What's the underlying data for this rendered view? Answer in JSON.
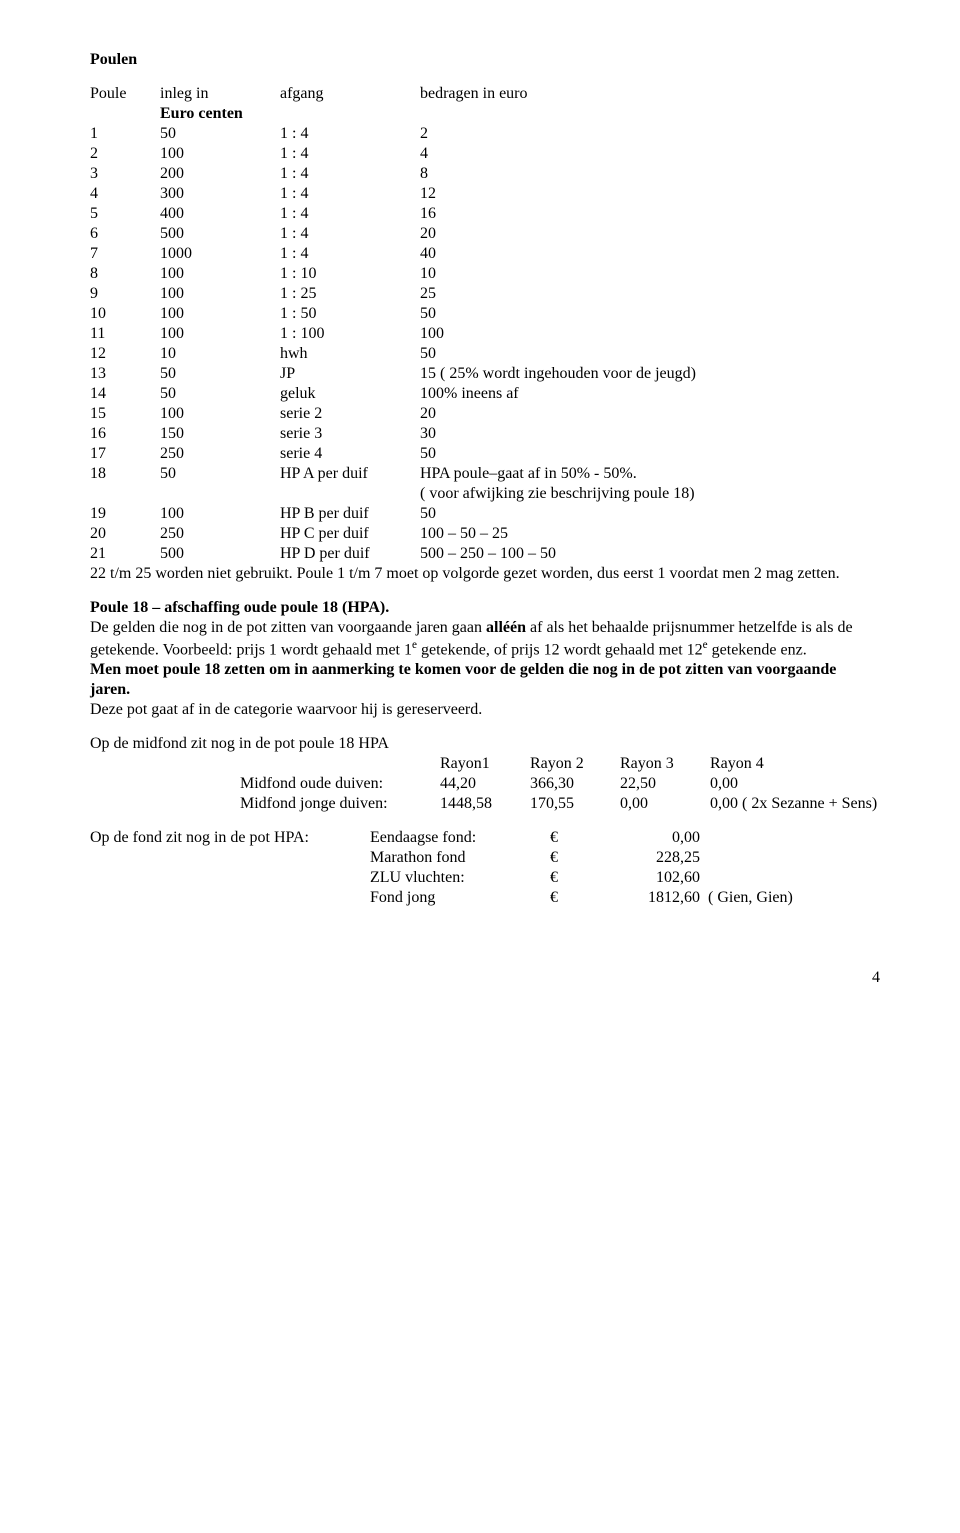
{
  "title": "Poulen",
  "header": {
    "poule": "Poule",
    "inleg": "inleg in",
    "euro_centen": "Euro centen",
    "afgang": "afgang",
    "bedragen": "bedragen in euro"
  },
  "rows": [
    {
      "n": "1",
      "inleg": "50",
      "afgang": "1 : 4",
      "bedrag": "2"
    },
    {
      "n": "2",
      "inleg": "100",
      "afgang": "1 : 4",
      "bedrag": "4"
    },
    {
      "n": "3",
      "inleg": "200",
      "afgang": "1 : 4",
      "bedrag": "8"
    },
    {
      "n": "4",
      "inleg": "300",
      "afgang": "1 : 4",
      "bedrag": "12"
    },
    {
      "n": "5",
      "inleg": "400",
      "afgang": "1 : 4",
      "bedrag": "16"
    },
    {
      "n": "6",
      "inleg": "500",
      "afgang": "1 : 4",
      "bedrag": "20"
    },
    {
      "n": "7",
      "inleg": "1000",
      "afgang": "1 : 4",
      "bedrag": "40"
    },
    {
      "n": "8",
      "inleg": "100",
      "afgang": "1 : 10",
      "bedrag": "10"
    },
    {
      "n": "9",
      "inleg": "100",
      "afgang": "1 : 25",
      "bedrag": "25"
    },
    {
      "n": "10",
      "inleg": "100",
      "afgang": "1 : 50",
      "bedrag": "50"
    },
    {
      "n": "11",
      "inleg": "100",
      "afgang": "1 : 100",
      "bedrag": "100"
    },
    {
      "n": "12",
      "inleg": "10",
      "afgang": "hwh",
      "bedrag": "50"
    },
    {
      "n": "13",
      "inleg": "50",
      "afgang": "JP",
      "bedrag": "15 ( 25% wordt ingehouden voor de jeugd)"
    },
    {
      "n": "14",
      "inleg": "50",
      "afgang": "geluk",
      "bedrag": "100%  ineens af"
    },
    {
      "n": "15",
      "inleg": "100",
      "afgang": "serie 2",
      "bedrag": "20"
    },
    {
      "n": "16",
      "inleg": "150",
      "afgang": "serie 3",
      "bedrag": "30"
    },
    {
      "n": "17",
      "inleg": "250",
      "afgang": "serie 4",
      "bedrag": "50"
    },
    {
      "n": "18",
      "inleg": "50",
      "afgang": "HP A  per duif",
      "bedrag": "HPA poule–gaat af in 50% - 50%."
    }
  ],
  "row18_note": "( voor afwijking zie beschrijving poule 18)",
  "rows2": [
    {
      "n": "19",
      "inleg": "100",
      "afgang": "HP B  per duif",
      "bedrag": "50"
    },
    {
      "n": "20",
      "inleg": "250",
      "afgang": "HP C  per duif",
      "bedrag": "100 – 50 – 25"
    },
    {
      "n": "21",
      "inleg": "500",
      "afgang": "HP D  per duif",
      "bedrag": "500 – 250 – 100 – 50"
    }
  ],
  "para1": "22 t/m 25 worden niet gebruikt. Poule 1 t/m 7 moet op volgorde gezet worden, dus eerst 1 voordat men 2 mag zetten.",
  "poule18_title": "Poule 18 – afschaffing oude poule 18 (HPA).",
  "p18_a": "De gelden die nog in de pot zitten van voorgaande jaren gaan ",
  "p18_alleen": "alléén",
  "p18_b": " af als het behaalde prijsnummer hetzelfde is als de getekende. Voorbeeld: prijs 1 wordt gehaald met 1",
  "p18_sup1": "e",
  "p18_c": " getekende,  of prijs 12 wordt gehaald met 12",
  "p18_sup2": "e",
  "p18_d": " getekende enz.",
  "p18_bold": "Men moet poule 18 zetten om in aanmerking te komen voor de gelden die nog in de pot zitten van voorgaande jaren.",
  "p18_e": "Deze pot gaat af in de categorie waarvoor hij is gereserveerd.",
  "midfond_intro": "Op de midfond zit nog in de pot poule 18 HPA",
  "rayon_header": {
    "r1": "Rayon1",
    "r2": "Rayon 2",
    "r3": "Rayon 3",
    "r4": "Rayon 4"
  },
  "midfond": [
    {
      "label": "Midfond oude duiven:",
      "r1": "44,20",
      "r2": "366,30",
      "r3": "22,50",
      "r4": "0,00"
    },
    {
      "label": "Midfond jonge duiven:",
      "r1": "1448,58",
      "r2": "170,55",
      "r3": "0,00",
      "r4": "0,00 ( 2x Sezanne + Sens)"
    }
  ],
  "fond_intro": "Op de fond zit nog in de pot HPA:",
  "fond": [
    {
      "name": "Eendaagse fond:",
      "eur": "€",
      "val": "0,00",
      "tail": ""
    },
    {
      "name": "Marathon  fond",
      "eur": "€",
      "val": "228,25",
      "tail": ""
    },
    {
      "name": "ZLU vluchten:",
      "eur": "€",
      "val": "102,60",
      "tail": ""
    },
    {
      "name": "Fond jong",
      "eur": "€",
      "val": "1812,60",
      "tail": "( Gien, Gien)"
    }
  ],
  "page_number": "4"
}
